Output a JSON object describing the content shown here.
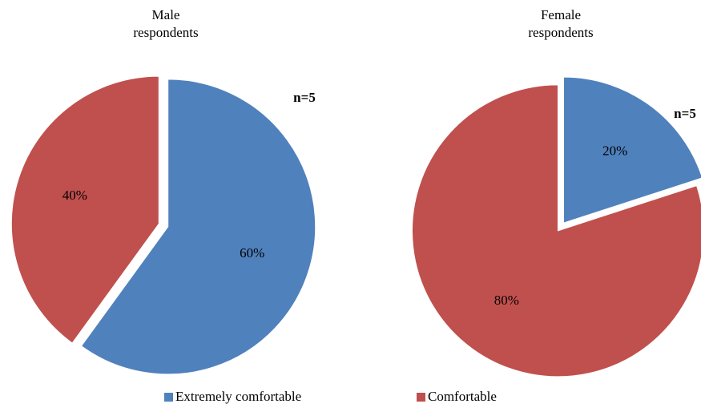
{
  "chart_data": [
    {
      "type": "pie",
      "title": "Male respondents",
      "annotation": "n=5",
      "categories": [
        "Extremely comfortable",
        "Comfortable"
      ],
      "values": [
        60,
        40
      ],
      "value_labels": [
        "60%",
        "40%"
      ],
      "colors": [
        "#4f81bd",
        "#c0504d"
      ]
    },
    {
      "type": "pie",
      "title": "Female respondents",
      "annotation": "n=5",
      "categories": [
        "Extremely comfortable",
        "Comfortable"
      ],
      "values": [
        20,
        80
      ],
      "value_labels": [
        "20%",
        "80%"
      ],
      "colors": [
        "#4f81bd",
        "#c0504d"
      ]
    }
  ]
}
